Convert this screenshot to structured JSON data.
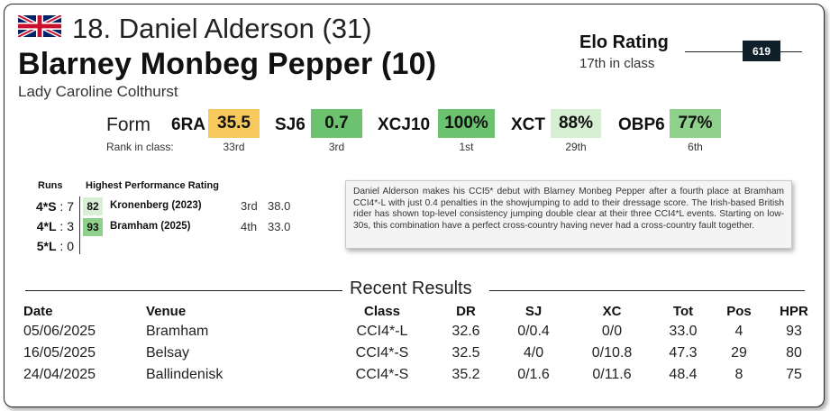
{
  "header": {
    "rider_line": "18. Daniel Alderson (31)",
    "horse_line": "Blarney Monbeg Pepper (10)",
    "owner": "Lady Caroline Colthurst",
    "flag_icon": "union-jack-flag-icon"
  },
  "elo": {
    "title": "Elo Rating",
    "rank_text": "17th in class",
    "value": "619"
  },
  "form": {
    "label": "Form",
    "rank_caption": "Rank in class:",
    "items": [
      {
        "code": "6RA",
        "value": "35.5",
        "rank": "33rd",
        "color": "#f7c85c"
      },
      {
        "code": "SJ6",
        "value": "0.7",
        "rank": "3rd",
        "color": "#6cc26f"
      },
      {
        "code": "XCJ10",
        "value": "100%",
        "rank": "1st",
        "color": "#6cc26f"
      },
      {
        "code": "XCT",
        "value": "88%",
        "rank": "29th",
        "color": "#d6efd3"
      },
      {
        "code": "OBP6",
        "value": "77%",
        "rank": "6th",
        "color": "#8fd08c"
      }
    ]
  },
  "runs": {
    "header": "Runs",
    "rows": [
      {
        "label": "4*S",
        "sep": ":",
        "count": "7"
      },
      {
        "label": "4*L",
        "sep": ":",
        "count": "3"
      },
      {
        "label": "5*L",
        "sep": ":",
        "count": "0"
      }
    ]
  },
  "hpr": {
    "header": "Highest Performance Rating",
    "rows": [
      {
        "rating": "82",
        "venue": "Kronenberg (2023)",
        "pos": "3rd",
        "score": "38.0",
        "color": "#d8efd6"
      },
      {
        "rating": "93",
        "venue": "Bramham (2025)",
        "pos": "4th",
        "score": "33.0",
        "color": "#8fd08c"
      }
    ]
  },
  "description": "Daniel Alderson makes his CCI5* debut with Blarney Monbeg Pepper after a fourth place at Bramham CCI4*-L with just 0.4 penalties in the showjumping to add to their dressage score. The Irish-based British rider has shown top-level consistency jumping double clear at their three CCI4*L events. Starting on low-30s, this combination have a perfect cross-country having never had a cross-country fault together.",
  "results": {
    "title": "Recent Results",
    "columns": [
      "Date",
      "Venue",
      "Class",
      "DR",
      "SJ",
      "XC",
      "Tot",
      "Pos",
      "HPR"
    ],
    "rows": [
      [
        "05/06/2025",
        "Bramham",
        "CCI4*-L",
        "32.6",
        "0/0.4",
        "0/0",
        "33.0",
        "4",
        "93"
      ],
      [
        "16/05/2025",
        "Belsay",
        "CCI4*-S",
        "32.5",
        "4/0",
        "0/10.8",
        "47.3",
        "29",
        "80"
      ],
      [
        "24/04/2025",
        "Ballindenisk",
        "CCI4*-S",
        "35.2",
        "0/1.6",
        "0/11.6",
        "48.4",
        "8",
        "75"
      ]
    ]
  }
}
